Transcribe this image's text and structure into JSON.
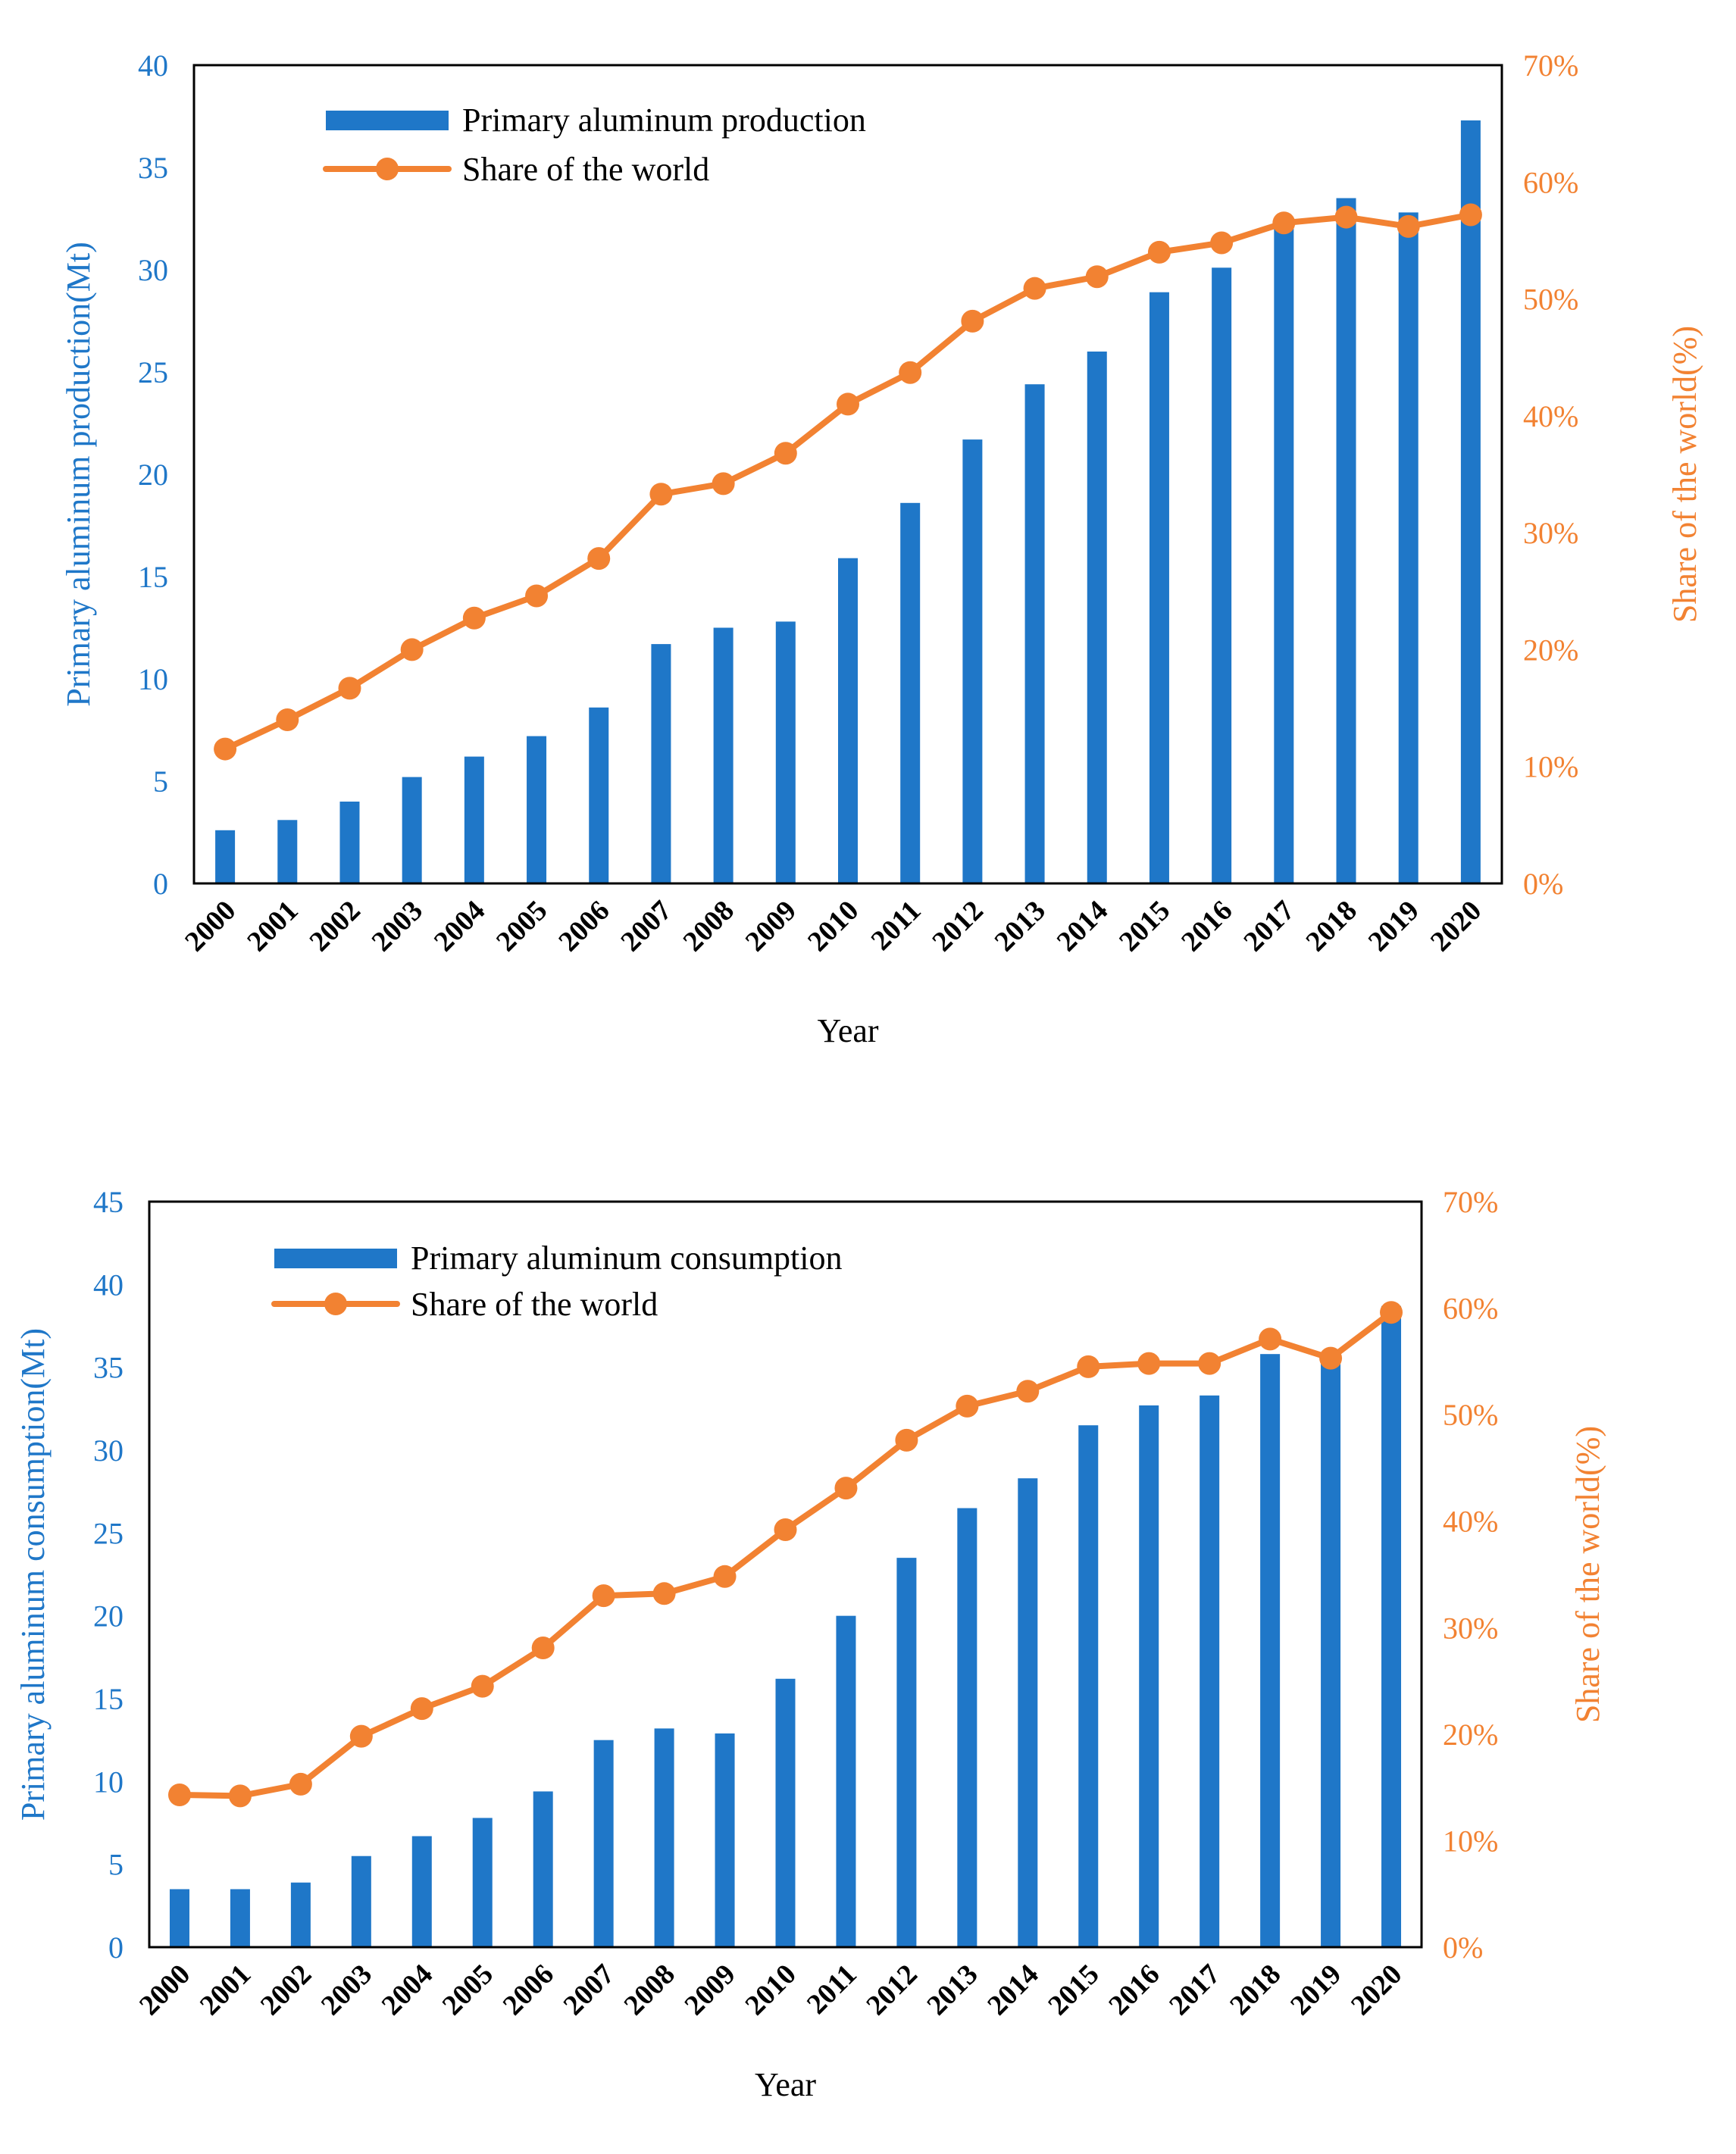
{
  "colors": {
    "bar": "#1F77C8",
    "line": "#F28232",
    "axis_left": "#1F77C8",
    "axis_right": "#F28232",
    "text": "#000000"
  },
  "chart_data": [
    {
      "type": "bar",
      "categories": [
        "2000",
        "2001",
        "2002",
        "2003",
        "2004",
        "2005",
        "2006",
        "2007",
        "2008",
        "2009",
        "2010",
        "2011",
        "2012",
        "2013",
        "2014",
        "2015",
        "2016",
        "2017",
        "2018",
        "2019",
        "2020"
      ],
      "series": [
        {
          "name": "Primary aluminum production",
          "type": "bar",
          "axis": "left",
          "values": [
            2.6,
            3.1,
            4.0,
            5.2,
            6.2,
            7.2,
            8.6,
            11.7,
            12.5,
            12.8,
            15.9,
            18.6,
            21.7,
            24.4,
            26.0,
            28.9,
            30.1,
            32.4,
            33.5,
            32.8,
            37.3
          ]
        },
        {
          "name": "Share of the world",
          "type": "line",
          "axis": "right",
          "values": [
            11.5,
            14.0,
            16.7,
            20.0,
            22.7,
            24.6,
            27.8,
            33.3,
            34.2,
            36.8,
            41.0,
            43.7,
            48.1,
            50.9,
            51.9,
            54.0,
            54.8,
            56.5,
            57.0,
            56.2,
            57.2
          ]
        }
      ],
      "xlabel": "Year",
      "ylabel": "Primary aluminum production(Mt)",
      "y2label": "Share of the world(%)",
      "ylim": [
        0,
        40
      ],
      "y2lim": [
        0,
        70
      ],
      "yticks": [
        "0",
        "5",
        "10",
        "15",
        "20",
        "25",
        "30",
        "35",
        "40"
      ],
      "y2ticks": [
        "0%",
        "10%",
        "20%",
        "30%",
        "40%",
        "50%",
        "60%",
        "70%"
      ],
      "legend_position": "top-left",
      "grid": false
    },
    {
      "type": "bar",
      "categories": [
        "2000",
        "2001",
        "2002",
        "2003",
        "2004",
        "2005",
        "2006",
        "2007",
        "2008",
        "2009",
        "2010",
        "2011",
        "2012",
        "2013",
        "2014",
        "2015",
        "2016",
        "2017",
        "2018",
        "2019",
        "2020"
      ],
      "series": [
        {
          "name": "Primary aluminum consumption",
          "type": "bar",
          "axis": "left",
          "values": [
            3.5,
            3.5,
            3.9,
            5.5,
            6.7,
            7.8,
            9.4,
            12.5,
            13.2,
            12.9,
            16.2,
            20.0,
            23.5,
            26.5,
            28.3,
            31.5,
            32.7,
            33.3,
            35.8,
            35.3,
            38.7
          ]
        },
        {
          "name": "Share of the world",
          "type": "line",
          "axis": "right",
          "values": [
            14.3,
            14.2,
            15.3,
            19.8,
            22.4,
            24.5,
            28.1,
            33.0,
            33.2,
            34.8,
            39.2,
            43.1,
            47.6,
            50.8,
            52.2,
            54.5,
            54.8,
            54.8,
            57.1,
            55.3,
            59.6
          ]
        }
      ],
      "xlabel": "Year",
      "ylabel": "Primary aluminum consumption(Mt)",
      "y2label": "Share of the world(%)",
      "ylim": [
        0,
        45
      ],
      "y2lim": [
        0,
        70
      ],
      "yticks": [
        "0",
        "5",
        "10",
        "15",
        "20",
        "25",
        "30",
        "35",
        "40",
        "45"
      ],
      "y2ticks": [
        "0%",
        "10%",
        "20%",
        "30%",
        "40%",
        "50%",
        "60%",
        "70%"
      ],
      "legend_position": "top-left",
      "grid": false
    }
  ]
}
